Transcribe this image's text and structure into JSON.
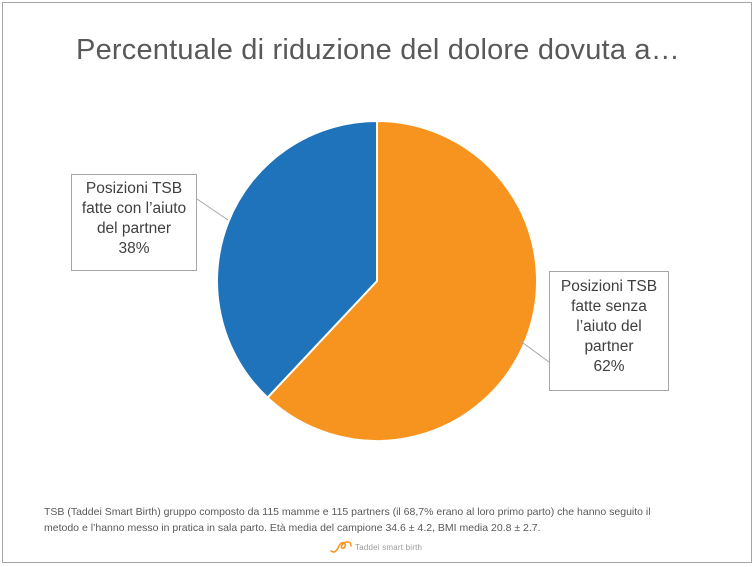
{
  "chart_data": {
    "type": "pie",
    "title": "Percentuale di riduzione del dolore dovuta a…",
    "slices": [
      {
        "label_lines": [
          "Posizioni TSB",
          "fatte senza",
          "l’aiuto del",
          "partner"
        ],
        "value": 62,
        "value_label": "62%",
        "color": "#F7941F"
      },
      {
        "label_lines": [
          "Posizioni TSB",
          "fatte con l’aiuto",
          "del partner"
        ],
        "value": 38,
        "value_label": "38%",
        "color": "#1F73BA"
      }
    ],
    "legend": "none",
    "start_angle": "top, clockwise"
  },
  "footnote": {
    "line1": "TSB (Taddei Smart Birth) gruppo composto da 115 mamme e 115 partners (il 68,7% erano al loro primo parto) che hanno seguito il",
    "line2": "metodo e l’hanno messo in pratica in sala parto. Età media del campione 34.6 ± 4.2, BMI media 20.8 ± 2.7."
  },
  "brand": {
    "text": "Taddei smart birth",
    "logo_icon": "orange-wave-logo-icon",
    "logo_color": "#F7941F"
  }
}
